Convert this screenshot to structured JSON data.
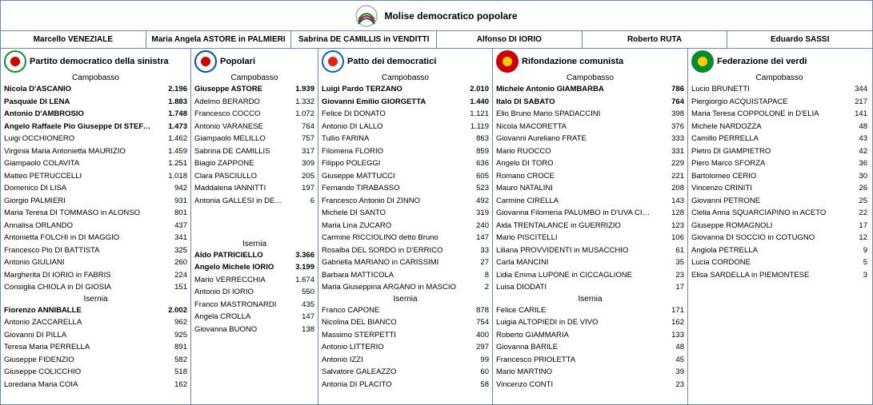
{
  "header": {
    "title": "Molise democratico popolare"
  },
  "leaders": [
    "Marcello VENEZIALE",
    "Maria Angela ASTORE in PALMIERI",
    "Sabrina DE CAMILLIS in VENDITTI",
    "Alfonso DI IORIO",
    "Roberto RUTA",
    "Eduardo SASSI"
  ],
  "regions": {
    "r1": "Campobasso",
    "r2": "Isernia"
  },
  "party_widths": [
    238,
    159,
    218,
    244,
    228
  ],
  "parties": [
    {
      "name": "Partito democratico della sinistra",
      "logo": {
        "bg": "#ffffff",
        "ring": "#1a8a2b",
        "inner": "#c00"
      },
      "campobasso_bold": 4,
      "campobasso": [
        [
          "Nicola D'ASCANIO",
          "2.196"
        ],
        [
          "Pasquale DI LENA",
          "1.883"
        ],
        [
          "Antonio D'AMBROSIO",
          "1.748"
        ],
        [
          "Angelo Raffaele Pio Giuseppe DI STEFANO",
          "1.473"
        ],
        [
          "Luigi OCCHIONERO",
          "1.462"
        ],
        [
          "Virginia Maria Antonietta MAURIZIO",
          "1.459"
        ],
        [
          "Giampaolo COLAVITA",
          "1.251"
        ],
        [
          "Matteo PETRUCCELLI",
          "1.018"
        ],
        [
          "Domenico DI LISA",
          "942"
        ],
        [
          "Giorgio PALMIERI",
          "931"
        ],
        [
          "Maria Teresa DI TOMMASO in ALONSO",
          "801"
        ],
        [
          "Annalisa ORLANDO",
          "437"
        ],
        [
          "Antonietta FOLCHI in DI MAGGIO",
          "341"
        ],
        [
          "Francesco Pio DI BATTISTA",
          "325"
        ],
        [
          "Antonio GIULIANI",
          "260"
        ],
        [
          "Margherita DI IORIO in FABRIS",
          "224"
        ],
        [
          "Consiglia CHIOLA in DI GIOSIA",
          "151"
        ]
      ],
      "isernia_bold": 1,
      "isernia": [
        [
          "Fiorenzo ANNIBALLE",
          "2.002"
        ],
        [
          "Antonio ZACCARELLA",
          "962"
        ],
        [
          "Giovanni DI PILLA",
          "925"
        ],
        [
          "Teresa Maria PERRELLA",
          "891"
        ],
        [
          "Giuseppe FIDENZIO",
          "582"
        ],
        [
          "Giuseppe COLICCHIO",
          "518"
        ],
        [
          "Loredana Maria COIA",
          "162"
        ]
      ]
    },
    {
      "name": "Popolari",
      "logo": {
        "bg": "#ffffff",
        "ring": "#0b4aa2",
        "inner": "#c00"
      },
      "campobasso_bold": 1,
      "campobasso": [
        [
          "Giuseppe ASTORE",
          "1.939"
        ],
        [
          "Adelmo BERARDO",
          "1.332"
        ],
        [
          "Francesco COCCO",
          "1.072"
        ],
        [
          "Antonio VARANESE",
          "764"
        ],
        [
          "Giampaolo MELILLO",
          "757"
        ],
        [
          "Sabrina DE CAMILLIS",
          "317"
        ],
        [
          "Biagio ZAPPONE",
          "309"
        ],
        [
          "Clara PASCIULLO",
          "205"
        ],
        [
          "Maddalena IANNITTI",
          "197"
        ],
        [
          "Antonia GALLESI in DE NATALE",
          "6"
        ]
      ],
      "isernia_bold": 2,
      "isernia": [
        [
          "Aldo PATRICIELLO",
          "3.366"
        ],
        [
          "Angelo Michele IORIO",
          "3.199"
        ],
        [
          "Mario VERRECCHIA",
          "1.674"
        ],
        [
          "Antonio DI IORIO",
          "550"
        ],
        [
          "Franco MASTRONARDI",
          "435"
        ],
        [
          "Angela CROLLA",
          "147"
        ],
        [
          "Giovanna BUONO",
          "138"
        ]
      ]
    },
    {
      "name": "Patto dei democratici",
      "logo": {
        "bg": "#ffffff",
        "ring": "#1060c0",
        "inner": "#d22"
      },
      "campobasso_bold": 2,
      "campobasso": [
        [
          "Luigi Pardo TERZANO",
          "2.010"
        ],
        [
          "Giovanni Emilio GIORGETTA",
          "1.440"
        ],
        [
          "Felice DI DONATO",
          "1.121"
        ],
        [
          "Antonio DI LALLO",
          "1.119"
        ],
        [
          "Tullio FARINA",
          "863"
        ],
        [
          "Filomena FLORIO",
          "859"
        ],
        [
          "Filippo POLEGGI",
          "636"
        ],
        [
          "Giuseppe MATTUCCI",
          "605"
        ],
        [
          "Fernando TIRABASSO",
          "523"
        ],
        [
          "Francesco Antonio DI ZINNO",
          "492"
        ],
        [
          "Michele DI SANTO",
          "319"
        ],
        [
          "Maria Lina ZUCARO",
          "240"
        ],
        [
          "Carmine RICCIOLINO detto Bruno",
          "147"
        ],
        [
          "Rosalba DEL SORDO in D'ERRICO",
          "33"
        ],
        [
          "Gabriella MARIANO in CARISSIMI",
          "27"
        ],
        [
          "Barbara MATTICOLA",
          "8"
        ],
        [
          "Maria Giuseppina ARGANO in MASCIO",
          "2"
        ]
      ],
      "isernia_bold": 0,
      "isernia": [
        [
          "Franco CAPONE",
          "878"
        ],
        [
          "Nicolina DEL BIANCO",
          "754"
        ],
        [
          "Massimo STERPETTI",
          "400"
        ],
        [
          "Antonio LITTERIO",
          "297"
        ],
        [
          "Antonio IZZI",
          "99"
        ],
        [
          "Salvatore GALEAZZO",
          "60"
        ],
        [
          "Antonia DI PLACITO",
          "58"
        ]
      ]
    },
    {
      "name": "Rifondazione comunista",
      "logo": {
        "bg": "#c00",
        "ring": "#c00",
        "inner": "#ffcc00"
      },
      "campobasso_bold": 2,
      "campobasso": [
        [
          "Michele Antonio GIAMBARBA",
          "786"
        ],
        [
          "Italo DI SABATO",
          "764"
        ],
        [
          "Elio Bruno Mario SPADACCINI",
          "398"
        ],
        [
          "Nicola MACORETTA",
          "376"
        ],
        [
          "Giovanni Aureliano FRATE",
          "333"
        ],
        [
          "Mario RUOCCO",
          "331"
        ],
        [
          "Angelo DI TORO",
          "229"
        ],
        [
          "Romano CROCE",
          "221"
        ],
        [
          "Mauro NATALINI",
          "208"
        ],
        [
          "Carmine CIRELLA",
          "143"
        ],
        [
          "Giovanna Filomena PALUMBO in D'UVA CIFELLI",
          "128"
        ],
        [
          "Aida TRENTALANCE in GUERRIZIO",
          "123"
        ],
        [
          "Mario PISCITELLI",
          "106"
        ],
        [
          "Liliana PROVVIDENTI in MUSACCHIO",
          "61"
        ],
        [
          "Carla MANCINI",
          "35"
        ],
        [
          "Lidia Emma LUPONE in CICCAGLIONE",
          "23"
        ],
        [
          "Luisa DIODATI",
          "17"
        ]
      ],
      "isernia_bold": 0,
      "isernia": [
        [
          "Felice CARILE",
          "171"
        ],
        [
          "Luigia ALTOPIEDI in DE VIVO",
          "162"
        ],
        [
          "Roberto GIAMMARIA",
          "133"
        ],
        [
          "Giovanna BARILE",
          "48"
        ],
        [
          "Francesco PRIOLETTA",
          "45"
        ],
        [
          "Mario MARTINO",
          "39"
        ],
        [
          "Vincenzo CONTI",
          "23"
        ]
      ]
    },
    {
      "name": "Federazione dei verdi",
      "logo": {
        "bg": "#0a8a2b",
        "ring": "#0a8a2b",
        "inner": "#ffcc00"
      },
      "campobasso_bold": 0,
      "campobasso": [
        [
          "Lucio BRUNETTI",
          "344"
        ],
        [
          "Piergiorgio ACQUISTAPACE",
          "217"
        ],
        [
          "Maria Teresa COPPOLONE in D'ELIA",
          "141"
        ],
        [
          "Michele NARDOZZA",
          "48"
        ],
        [
          "Camillo PERRELLA",
          "43"
        ],
        [
          "Pietro DI GIAMPIETRO",
          "42"
        ],
        [
          "Piero Marco SFORZA",
          "36"
        ],
        [
          "Bartolomeo CERIO",
          "30"
        ],
        [
          "Vincenzo CRINITI",
          "26"
        ],
        [
          "Giovanni PETRONE",
          "25"
        ],
        [
          "Clelia Anna SQUARCIAPINO in ACETO",
          "22"
        ],
        [
          "Giuseppe ROMAGNOLI",
          "17"
        ],
        [
          "Giovanna DI SOCCIO in COTUGNO",
          "12"
        ],
        [
          "Angiola PETRELLA",
          "9"
        ],
        [
          "Lucia CORDONE",
          "5"
        ],
        [
          "Elisa SARDELLA in PIEMONTESE",
          "3"
        ]
      ],
      "isernia_bold": 0,
      "isernia": []
    }
  ]
}
